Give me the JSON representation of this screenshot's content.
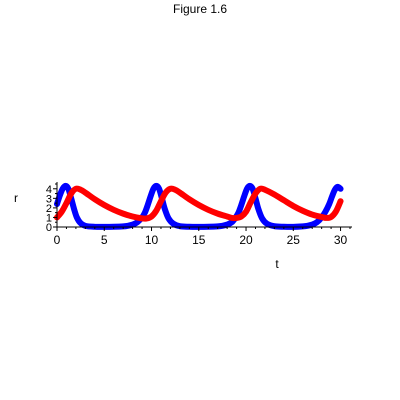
{
  "chart_data": {
    "type": "line",
    "title": "Figure 1.6",
    "xlabel": "t",
    "ylabel": "r",
    "xlim": [
      0,
      31
    ],
    "ylim": [
      0,
      4.5
    ],
    "x_ticks": [
      "0",
      "5",
      "10",
      "15",
      "20",
      "25",
      "30"
    ],
    "y_ticks": [
      "0",
      "1",
      "2",
      "3",
      "4"
    ],
    "grid": false,
    "legend": "none",
    "series": [
      {
        "color": "#0000ff",
        "x": [
          0,
          0.3,
          0.6,
          0.9,
          1.2,
          1.5,
          1.8,
          2.1,
          2.5,
          3,
          4,
          5,
          6,
          7,
          7.5,
          8,
          8.5,
          9,
          9.3,
          9.6,
          9.9,
          10.2,
          10.5,
          10.8,
          11.1,
          11.4,
          11.8,
          12.3,
          13,
          14,
          15,
          16,
          17,
          17.5,
          18,
          18.5,
          18.9,
          19.2,
          19.5,
          19.8,
          20.1,
          20.4,
          20.7,
          21,
          21.3,
          21.7,
          22.2,
          23,
          24,
          25,
          26,
          26.5,
          27,
          27.5,
          28,
          28.4,
          28.8,
          29.1,
          29.4,
          29.7,
          30
        ],
        "y": [
          2.4,
          3.3,
          4,
          4.3,
          4,
          3,
          1.9,
          1,
          0.4,
          0.12,
          0.02,
          0.01,
          0.02,
          0.06,
          0.12,
          0.25,
          0.5,
          1,
          1.5,
          2.3,
          3.2,
          4,
          4.3,
          4,
          3,
          1.9,
          0.9,
          0.35,
          0.08,
          0.02,
          0.01,
          0.02,
          0.06,
          0.12,
          0.25,
          0.5,
          1,
          1.5,
          2.3,
          3.2,
          4,
          4.3,
          4,
          3,
          1.9,
          0.9,
          0.35,
          0.08,
          0.02,
          0.01,
          0.06,
          0.12,
          0.25,
          0.5,
          1,
          1.6,
          2.4,
          3.2,
          3.9,
          4.2,
          4
        ]
      },
      {
        "color": "#ff0000",
        "x": [
          0,
          0.5,
          1,
          1.5,
          2,
          2.5,
          3,
          4,
          5,
          6,
          7,
          8,
          9,
          9.5,
          10,
          10.5,
          11,
          11.5,
          12,
          12.5,
          13,
          14,
          15,
          16,
          17,
          18,
          18.5,
          19,
          19.5,
          20,
          20.5,
          21,
          21.5,
          22,
          23,
          24,
          25,
          26,
          27,
          28,
          28.5,
          29,
          29.5,
          30
        ],
        "y": [
          1,
          1.6,
          2.5,
          3.5,
          4,
          3.9,
          3.6,
          2.9,
          2.3,
          1.8,
          1.4,
          1.1,
          0.9,
          0.9,
          1.1,
          1.7,
          2.7,
          3.6,
          4,
          3.9,
          3.6,
          2.9,
          2.3,
          1.8,
          1.4,
          1.1,
          0.95,
          0.95,
          1.1,
          1.6,
          2.6,
          3.5,
          4,
          3.9,
          3.4,
          2.8,
          2.2,
          1.7,
          1.3,
          1.05,
          0.95,
          1.05,
          1.6,
          2.7
        ]
      }
    ]
  }
}
